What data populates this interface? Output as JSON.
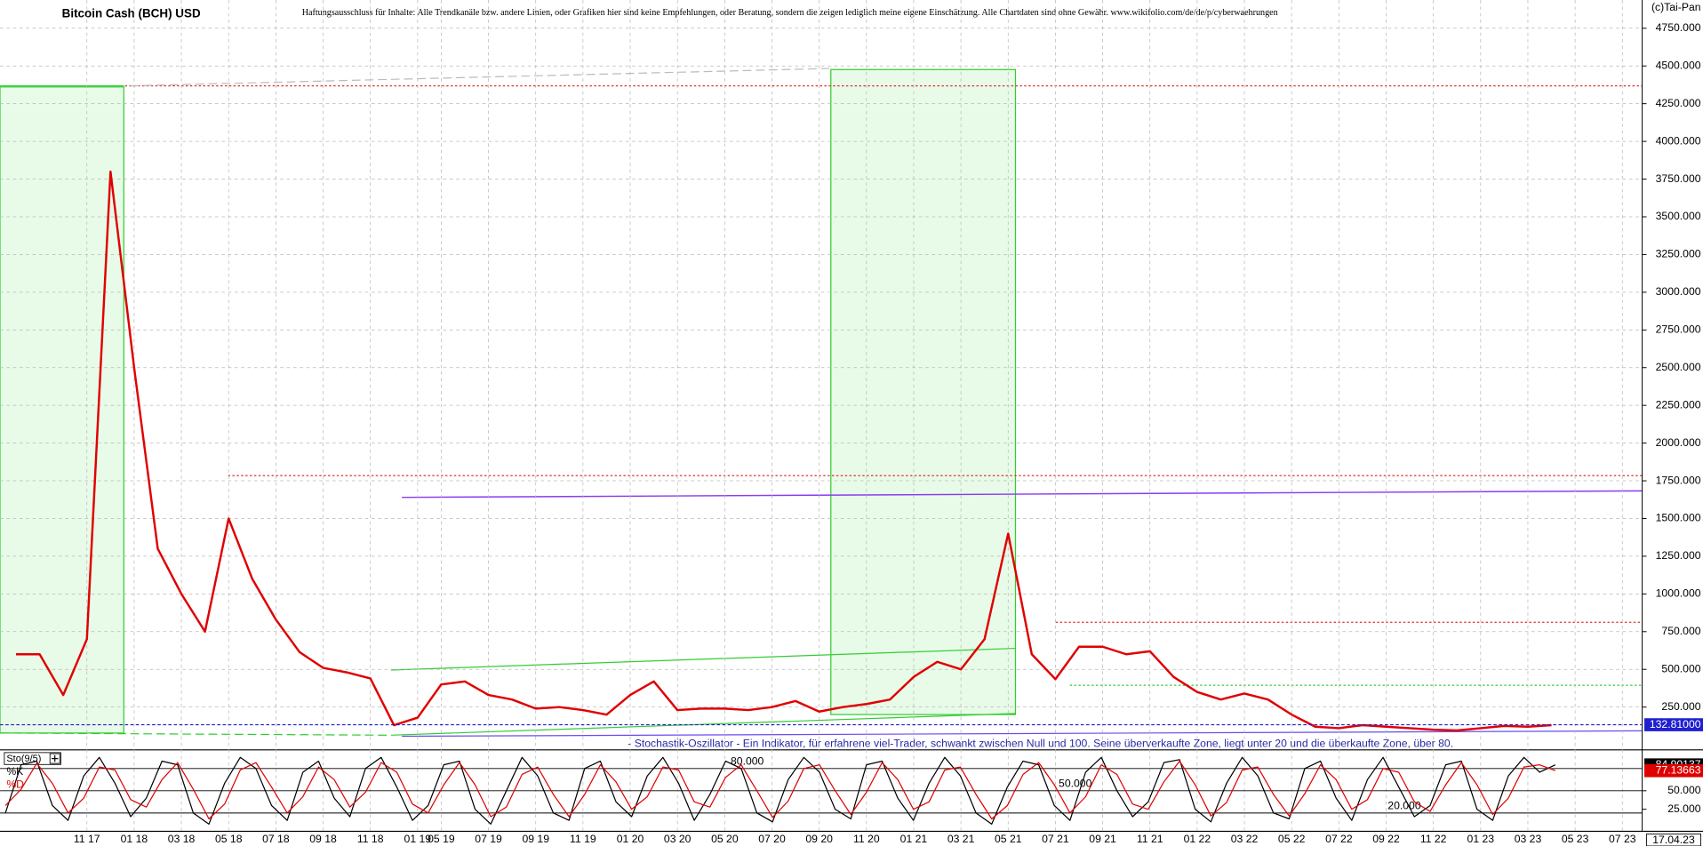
{
  "chart_data": [
    {
      "type": "line",
      "title": "Bitcoin Cash (BCH) USD",
      "disclaimer": "Haftungsausschluss für Inhalte: Alle Trendkanäle bzw. andere Linien, oder Grafiken hier sind keine Empfehlungen, oder Beratung, sondern die zeigen lediglich meine eigene Einschätzung. Alle Chartdaten sind ohne Gewähr. www.wikifolio.com/de/de/p/cyberwaehrungen",
      "source": "(c)Tai-Pan",
      "categories": [
        null,
        null,
        null,
        "11 17",
        null,
        "01 18",
        null,
        "03 18",
        null,
        "05 18",
        null,
        "07 18",
        null,
        "09 18",
        null,
        "11 18",
        null,
        "01 19",
        "05 19",
        null,
        "07 19",
        null,
        "09 19",
        null,
        "11 19",
        null,
        "01 20",
        null,
        "03 20",
        null,
        "05 20",
        null,
        "07 20",
        null,
        "09 20",
        null,
        "11 20",
        null,
        "01 21",
        null,
        "03 21",
        null,
        "05 21",
        null,
        "07 21",
        null,
        "09 21",
        null,
        "11 21",
        null,
        "01 22",
        null,
        "03 22",
        null,
        "05 22",
        null,
        "07 22",
        null,
        "09 22",
        null,
        "11 22",
        null,
        "01 23",
        null,
        "03 23",
        null,
        "05 23",
        null,
        "07 23"
      ],
      "values": [
        600,
        600,
        330,
        700,
        3800,
        2500,
        1300,
        1000,
        750,
        1500,
        1100,
        830,
        615,
        510,
        480,
        440,
        130,
        180,
        400,
        420,
        330,
        300,
        240,
        250,
        230,
        200,
        330,
        420,
        230,
        240,
        240,
        230,
        250,
        290,
        220,
        250,
        270,
        300,
        450,
        550,
        500,
        700,
        1400,
        600,
        435,
        650,
        650,
        600,
        620,
        450,
        350,
        300,
        340,
        300,
        200,
        120,
        110,
        130,
        120,
        110,
        100,
        95,
        110,
        125,
        120,
        130,
        null,
        null,
        null
      ],
      "color": "#e00000",
      "ylim": [
        -30,
        4937
      ],
      "yticks": [
        {
          "value": 250,
          "label": "250.000"
        },
        {
          "value": 500,
          "label": "500.000"
        },
        {
          "value": 750,
          "label": "750.000"
        },
        {
          "value": 1000,
          "label": "1000.000"
        },
        {
          "value": 1250,
          "label": "1250.000"
        },
        {
          "value": 1500,
          "label": "1500.000"
        },
        {
          "value": 1750,
          "label": "1750.000"
        },
        {
          "value": 2000,
          "label": "2000.000"
        },
        {
          "value": 2250,
          "label": "2250.000"
        },
        {
          "value": 2500,
          "label": "2500.000"
        },
        {
          "value": 2750,
          "label": "2750.000"
        },
        {
          "value": 3000,
          "label": "3000.000"
        },
        {
          "value": 3250,
          "label": "3250.000"
        },
        {
          "value": 3500,
          "label": "3500.000"
        },
        {
          "value": 3750,
          "label": "3750.000"
        },
        {
          "value": 4000,
          "label": "4000.000"
        },
        {
          "value": 4250,
          "label": "4250.000"
        },
        {
          "value": 4500,
          "label": "4500.000"
        },
        {
          "value": 4750,
          "label": "4750.000"
        }
      ],
      "grid": true,
      "last_value": {
        "value": 132.81,
        "label": "132.81000"
      },
      "current_date": "17.04.23"
    },
    {
      "type": "line",
      "title": "- Stochastik-Oszillator - Ein Indikator, für erfahrene viel-Trader, schwankt zwischen Null und 100. Seine überverkaufte Zone, liegt unter 20 und die überkaufte Zone, über 80.",
      "indicator_label": "Sto(9/5)",
      "series": [
        {
          "name": "%K",
          "color": "#000000",
          "values": [
            20,
            85,
            90,
            30,
            10,
            70,
            95,
            60,
            15,
            40,
            90,
            85,
            20,
            5,
            60,
            95,
            80,
            30,
            10,
            75,
            90,
            40,
            15,
            80,
            95,
            55,
            10,
            30,
            85,
            90,
            25,
            5,
            50,
            95,
            70,
            20,
            10,
            80,
            90,
            35,
            15,
            70,
            95,
            60,
            10,
            45,
            90,
            80,
            20,
            8,
            65,
            95,
            75,
            25,
            12,
            85,
            90,
            40,
            10,
            60,
            95,
            70,
            20,
            5,
            55,
            90,
            85,
            30,
            10,
            75,
            95,
            50,
            15,
            35,
            88,
            92,
            25,
            8,
            60,
            95,
            70,
            20,
            12,
            80,
            90,
            40,
            10,
            65,
            95,
            55,
            15,
            30,
            85,
            90,
            25,
            10,
            70,
            95,
            75,
            84.90137
          ]
        },
        {
          "name": "%D",
          "color": "#e00000",
          "values": [
            30,
            52,
            87,
            60,
            20,
            40,
            82,
            78,
            38,
            28,
            65,
            88,
            52,
            12,
            32,
            78,
            88,
            55,
            20,
            42,
            82,
            65,
            28,
            48,
            88,
            75,
            32,
            20,
            58,
            88,
            58,
            15,
            28,
            72,
            82,
            45,
            15,
            45,
            85,
            62,
            25,
            42,
            82,
            78,
            35,
            28,
            68,
            85,
            50,
            14,
            36,
            80,
            85,
            50,
            18,
            48,
            88,
            65,
            25,
            35,
            78,
            82,
            45,
            12,
            30,
            72,
            88,
            58,
            20,
            42,
            85,
            72,
            32,
            25,
            62,
            90,
            58,
            16,
            34,
            78,
            82,
            45,
            16,
            46,
            85,
            65,
            25,
            38,
            80,
            75,
            35,
            22,
            58,
            88,
            58,
            18,
            40,
            82,
            85,
            77.13663
          ]
        }
      ],
      "ylim": [
        -4,
        103
      ],
      "yticks": [
        {
          "value": 50,
          "label": "50.000"
        },
        {
          "value": 25,
          "label": "25.000"
        }
      ],
      "levels": [
        {
          "value": 80,
          "label": "80.000"
        },
        {
          "value": 50,
          "label": "50.000"
        },
        {
          "value": 20,
          "label": "20.000"
        }
      ]
    }
  ]
}
